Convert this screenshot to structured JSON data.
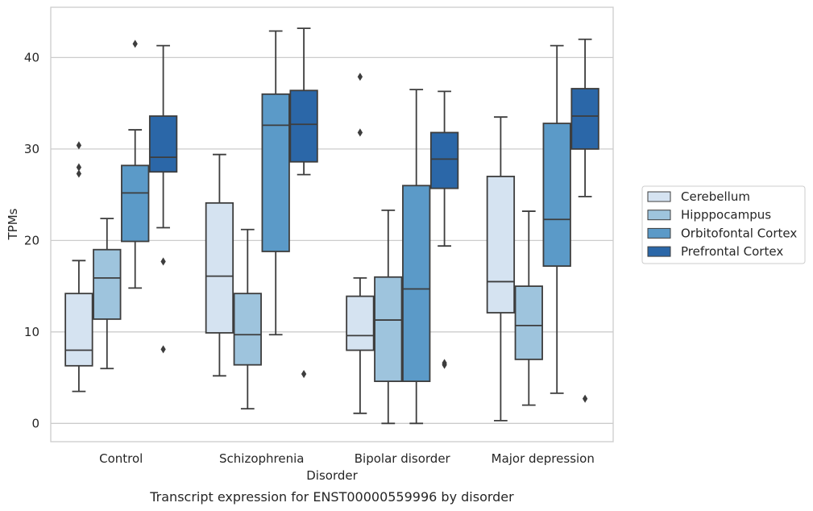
{
  "chart_data": {
    "type": "box",
    "categories": [
      "Control",
      "Schizophrenia",
      "Bipolar disorder",
      "Major depression"
    ],
    "xlabel": "Disorder",
    "ylabel": "TPMs",
    "caption": "Transcript expression for ENST00000559996 by disorder",
    "ylim": [
      -2,
      45.5
    ],
    "yticks": [
      0,
      10,
      20,
      30,
      40
    ],
    "grid": "horizontal",
    "legend_position": "right",
    "series": [
      {
        "name": "Cerebellum",
        "color": "#d5e3f1",
        "boxes": [
          {
            "whisker_low": 3.5,
            "q1": 6.3,
            "median": 8.0,
            "q3": 14.2,
            "whisker_high": 17.8,
            "outliers": [
              27.3,
              28.0,
              30.4
            ]
          },
          {
            "whisker_low": 5.2,
            "q1": 9.9,
            "median": 16.1,
            "q3": 24.1,
            "whisker_high": 29.4,
            "outliers": []
          },
          {
            "whisker_low": 1.1,
            "q1": 8.0,
            "median": 9.6,
            "q3": 13.9,
            "whisker_high": 15.9,
            "outliers": [
              31.8,
              37.9
            ]
          },
          {
            "whisker_low": 0.3,
            "q1": 12.1,
            "median": 15.5,
            "q3": 27.0,
            "whisker_high": 33.5,
            "outliers": []
          }
        ]
      },
      {
        "name": "Hipppocampus",
        "color": "#9ec4dd",
        "boxes": [
          {
            "whisker_low": 6.0,
            "q1": 11.4,
            "median": 15.9,
            "q3": 19.0,
            "whisker_high": 22.4,
            "outliers": []
          },
          {
            "whisker_low": 1.6,
            "q1": 6.4,
            "median": 9.7,
            "q3": 14.2,
            "whisker_high": 21.2,
            "outliers": []
          },
          {
            "whisker_low": 0.0,
            "q1": 4.6,
            "median": 11.3,
            "q3": 16.0,
            "whisker_high": 23.3,
            "outliers": []
          },
          {
            "whisker_low": 2.0,
            "q1": 7.0,
            "median": 10.7,
            "q3": 15.0,
            "whisker_high": 23.2,
            "outliers": []
          }
        ]
      },
      {
        "name": "Orbitofontal Cortex",
        "color": "#5b9ac8",
        "boxes": [
          {
            "whisker_low": 14.8,
            "q1": 19.9,
            "median": 25.2,
            "q3": 28.2,
            "whisker_high": 32.1,
            "outliers": [
              41.5
            ]
          },
          {
            "whisker_low": 9.7,
            "q1": 18.8,
            "median": 32.6,
            "q3": 36.0,
            "whisker_high": 42.9,
            "outliers": []
          },
          {
            "whisker_low": 0.0,
            "q1": 4.6,
            "median": 14.7,
            "q3": 26.0,
            "whisker_high": 36.5,
            "outliers": []
          },
          {
            "whisker_low": 3.3,
            "q1": 17.2,
            "median": 22.3,
            "q3": 32.8,
            "whisker_high": 41.3,
            "outliers": []
          }
        ]
      },
      {
        "name": "Prefrontal Cortex",
        "color": "#2b67a8",
        "boxes": [
          {
            "whisker_low": 21.4,
            "q1": 27.5,
            "median": 29.1,
            "q3": 33.6,
            "whisker_high": 41.3,
            "outliers": [
              8.1,
              17.7
            ]
          },
          {
            "whisker_low": 27.2,
            "q1": 28.6,
            "median": 32.7,
            "q3": 36.4,
            "whisker_high": 43.2,
            "outliers": [
              5.4
            ]
          },
          {
            "whisker_low": 19.4,
            "q1": 25.7,
            "median": 28.9,
            "q3": 31.8,
            "whisker_high": 36.3,
            "outliers": [
              6.4,
              6.6
            ]
          },
          {
            "whisker_low": 24.8,
            "q1": 30.0,
            "median": 33.6,
            "q3": 36.6,
            "whisker_high": 42.0,
            "outliers": [
              2.7
            ]
          }
        ]
      }
    ]
  }
}
